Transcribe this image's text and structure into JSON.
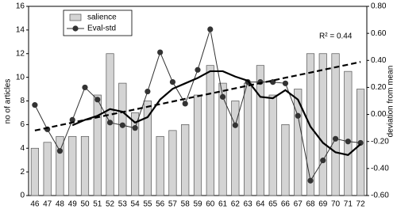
{
  "chart_data": {
    "type": "bar",
    "categories": [
      "46",
      "47",
      "48",
      "49",
      "50",
      "51",
      "52",
      "53",
      "54",
      "55",
      "56",
      "57",
      "58",
      "59",
      "60",
      "61",
      "62",
      "63",
      "64",
      "65",
      "66",
      "67",
      "68",
      "69",
      "70",
      "71",
      "72"
    ],
    "series": [
      {
        "name": "salience",
        "type": "bar",
        "color": "#d4d4d4",
        "values": [
          4,
          4.5,
          5,
          5,
          5,
          8.5,
          12,
          9.5,
          7,
          8,
          5,
          5.5,
          6,
          8.5,
          11,
          9.5,
          8,
          9.5,
          11,
          8.5,
          6,
          9,
          12,
          12,
          12,
          10.5,
          9
        ]
      },
      {
        "name": "Eval-std",
        "type": "line",
        "axis": "y2",
        "color": "#333333",
        "marker": true,
        "line_width": 1,
        "values": [
          0.07,
          -0.11,
          -0.27,
          -0.04,
          0.2,
          0.11,
          -0.06,
          -0.08,
          -0.1,
          0.17,
          0.46,
          0.24,
          0.08,
          0.33,
          0.63,
          0.13,
          -0.08,
          0.24,
          0.24,
          0.24,
          0.23,
          -0.01,
          -0.49,
          -0.34,
          -0.18,
          -0.2,
          -0.21
        ]
      },
      {
        "type": "line",
        "axis": "y2",
        "color": "#000000",
        "marker": false,
        "line_width": 2.2,
        "values": [
          null,
          null,
          null,
          -0.08,
          -0.04,
          -0.01,
          0.04,
          0.02,
          -0.06,
          -0.02,
          0.11,
          0.19,
          0.23,
          0.27,
          0.32,
          0.32,
          0.28,
          0.25,
          0.13,
          0.12,
          0.18,
          0.11,
          -0.09,
          -0.21,
          -0.28,
          -0.3,
          -0.22
        ]
      },
      {
        "type": "line",
        "color": "#000000",
        "marker": false,
        "line_width": 2.2,
        "dash": true,
        "values": [
          5.5,
          5.72,
          5.95,
          6.17,
          6.39,
          6.62,
          6.84,
          7.06,
          7.28,
          7.51,
          7.73,
          7.95,
          8.18,
          8.4,
          8.62,
          8.84,
          9.07,
          9.29,
          9.51,
          9.73,
          9.96,
          10.18,
          10.4,
          10.63,
          10.85,
          11.07,
          11.3
        ]
      }
    ],
    "ylabel": "no of articles",
    "y2label": "deviation from mean",
    "annotation": "R² = 0.44",
    "ylim": [
      0,
      16
    ],
    "yticks": [
      0,
      2,
      4,
      6,
      8,
      10,
      12,
      14,
      16
    ],
    "y2lim": [
      -0.6,
      0.8
    ],
    "y2ticks": [
      {
        "value": -0.6,
        "label": "-0.60"
      },
      {
        "value": -0.4,
        "label": "-0.40"
      },
      {
        "value": -0.2,
        "label": "-0.20"
      },
      {
        "value": 0,
        "label": "0.00"
      },
      {
        "value": 0.2,
        "label": "0.20"
      },
      {
        "value": 0.4,
        "label": "0.40"
      },
      {
        "value": 0.6,
        "label": "0.60"
      },
      {
        "value": 0.8,
        "label": "0.80"
      }
    ],
    "legend": "upper left"
  }
}
